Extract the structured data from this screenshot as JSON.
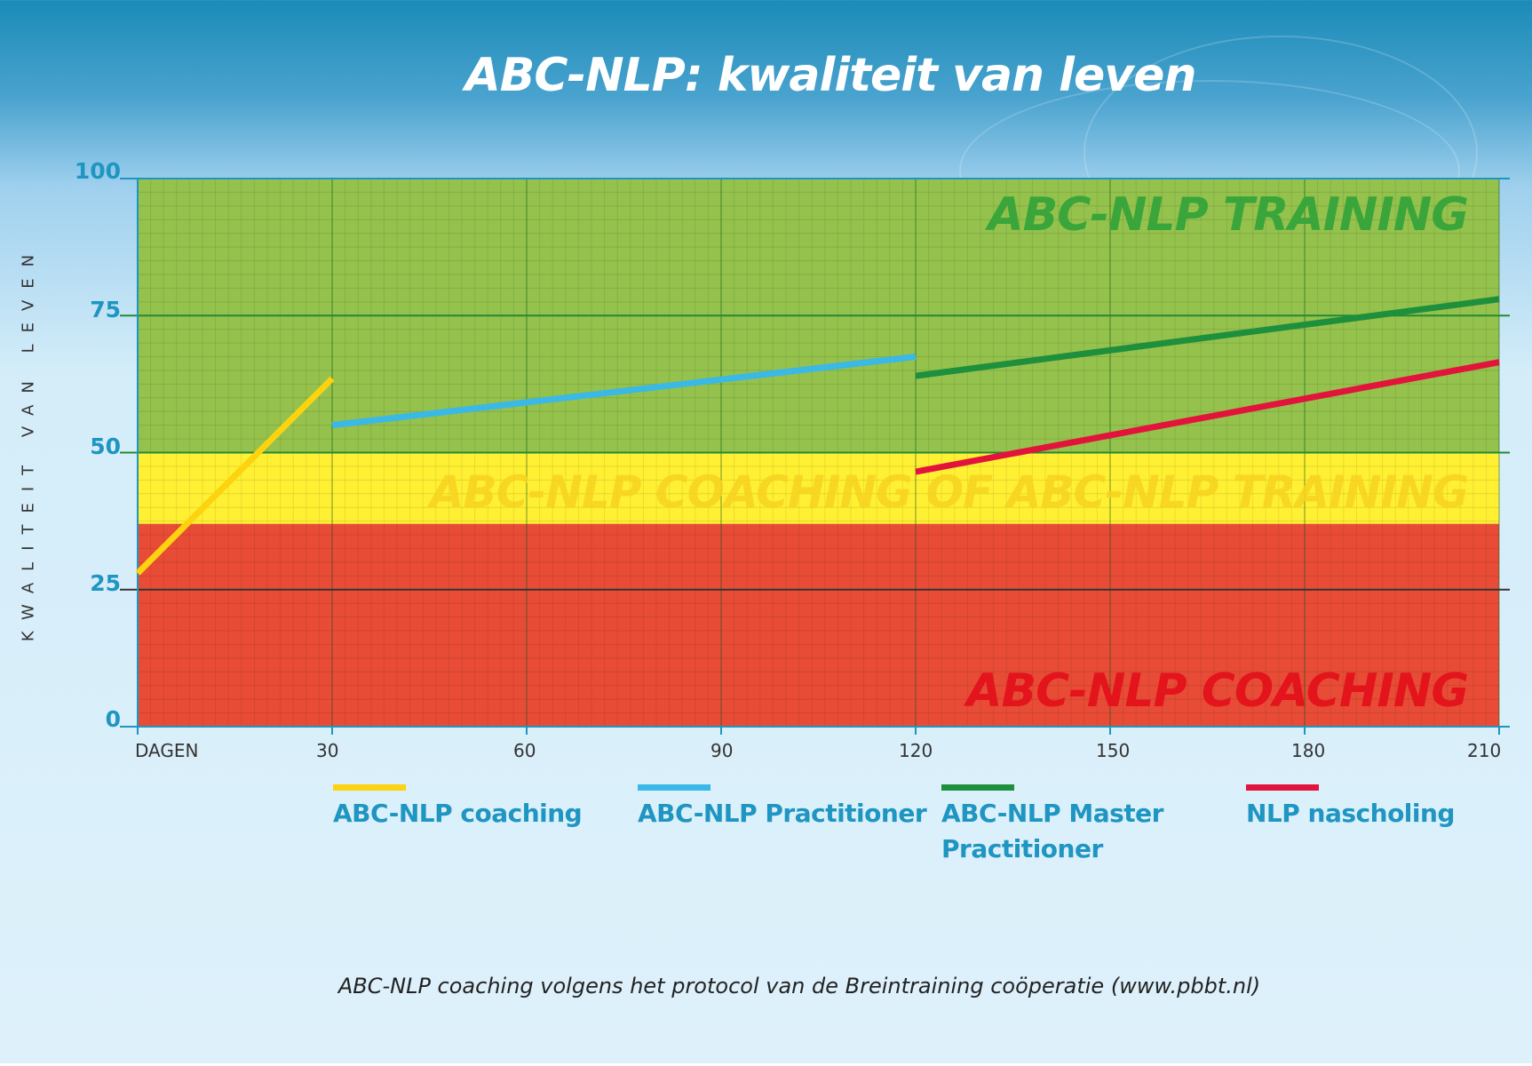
{
  "title": "ABC-NLP: kwaliteit van leven",
  "footnote": "ABC-NLP coaching volgens het protocol van de Breintraining coöperatie (www.pbbt.nl)",
  "chart_data": {
    "type": "line",
    "title": "ABC-NLP: kwaliteit van leven",
    "ylabel": "KWALITEIT VAN LEVEN",
    "xlabel": "DAGEN",
    "xlim": [
      0,
      210
    ],
    "ylim": [
      0,
      100
    ],
    "x_ticks": [
      {
        "value": 0,
        "label": "DAGEN"
      },
      {
        "value": 30,
        "label": "30"
      },
      {
        "value": 60,
        "label": "60"
      },
      {
        "value": 90,
        "label": "90"
      },
      {
        "value": 120,
        "label": "120"
      },
      {
        "value": 150,
        "label": "150"
      },
      {
        "value": 180,
        "label": "180"
      },
      {
        "value": 210,
        "label": "210"
      }
    ],
    "y_ticks": [
      {
        "value": 0,
        "label": "0"
      },
      {
        "value": 25,
        "label": "25"
      },
      {
        "value": 50,
        "label": "50"
      },
      {
        "value": 75,
        "label": "75"
      },
      {
        "value": 100,
        "label": "100"
      }
    ],
    "grid": true,
    "zones": [
      {
        "label": "ABC-NLP TRAINING",
        "from": 50,
        "to": 100,
        "color": "#94c24c",
        "text_color": "#3aa53a"
      },
      {
        "label": "ABC-NLP COACHING OF ABC-NLP TRAINING",
        "from": 37,
        "to": 50,
        "color": "#fff033",
        "text_color": "#f7d320"
      },
      {
        "label": "ABC-NLP COACHING",
        "from": 0,
        "to": 37,
        "color": "#e84c36",
        "text_color": "#e3141c"
      }
    ],
    "series": [
      {
        "name": "ABC-NLP coaching",
        "color": "#fdd20e",
        "points": [
          [
            0,
            28
          ],
          [
            30,
            63.5
          ]
        ]
      },
      {
        "name": "ABC-NLP Practitioner",
        "color": "#3ab8e6",
        "points": [
          [
            30,
            55
          ],
          [
            120,
            67.5
          ]
        ]
      },
      {
        "name": "ABC-NLP Master Practitioner",
        "color": "#1e8f3c",
        "points": [
          [
            120,
            64
          ],
          [
            210,
            78
          ]
        ]
      },
      {
        "name": "NLP nascholing",
        "color": "#e2143c",
        "points": [
          [
            120,
            46.5
          ],
          [
            210,
            66.5
          ]
        ]
      }
    ]
  },
  "legend": [
    {
      "label_lines": [
        "ABC-NLP coaching"
      ],
      "color": "#fdd20e"
    },
    {
      "label_lines": [
        "ABC-NLP Practitioner"
      ],
      "color": "#3ab8e6"
    },
    {
      "label_lines": [
        "ABC-NLP Master",
        "Practitioner"
      ],
      "color": "#1e8f3c"
    },
    {
      "label_lines": [
        "NLP nascholing"
      ],
      "color": "#e2143c"
    }
  ]
}
